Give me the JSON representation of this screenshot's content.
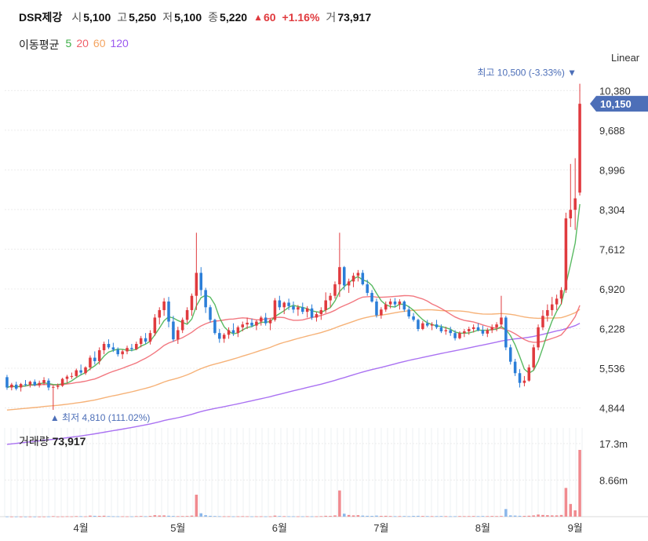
{
  "header": {
    "name": "DSR제강",
    "open_label": "시",
    "open": "5,100",
    "high_label": "고",
    "high": "5,250",
    "low_label": "저",
    "low": "5,100",
    "close_label": "종",
    "close": "5,220",
    "change_arrow": "▲",
    "change": "60",
    "change_pct": "+1.16%",
    "volume_label": "거",
    "volume": "73,917"
  },
  "moving_average": {
    "label": "이동평균",
    "items": [
      {
        "period": "5",
        "color": "#3cae46"
      },
      {
        "period": "20",
        "color": "#f0606a"
      },
      {
        "period": "60",
        "color": "#f4a460"
      },
      {
        "period": "120",
        "color": "#9b59f0"
      }
    ]
  },
  "scale_mode": "Linear",
  "volume_panel": {
    "title": "거래량",
    "value": "73,917"
  },
  "chart_data": [
    {
      "type": "candlestick",
      "x_labels": [
        "4월",
        "5월",
        "6월",
        "7월",
        "8월",
        "9월"
      ],
      "y_ticks": [
        4844,
        5536,
        6228,
        6920,
        7612,
        8304,
        8996,
        9688,
        10380
      ],
      "ylim": [
        4700,
        10700
      ],
      "current_price": "10,150",
      "current_value": 10150,
      "high_marker": {
        "label": "최고",
        "value": "10,500",
        "pct": "(-3.33%)",
        "arrow": "▼"
      },
      "low_marker": {
        "label": "최저",
        "value": "4,810",
        "pct": "(111.02%)",
        "arrow": "▲"
      },
      "up_color": "#e03a3e",
      "down_color": "#2b7ed8",
      "grid": true,
      "ohlc": [
        [
          5380,
          5420,
          5160,
          5200
        ],
        [
          5200,
          5280,
          5150,
          5250
        ],
        [
          5250,
          5300,
          5150,
          5180
        ],
        [
          5200,
          5280,
          5130,
          5260
        ],
        [
          5260,
          5330,
          5220,
          5250
        ],
        [
          5250,
          5320,
          5200,
          5300
        ],
        [
          5300,
          5340,
          5220,
          5240
        ],
        [
          5240,
          5320,
          5200,
          5280
        ],
        [
          5280,
          5380,
          5240,
          5330
        ],
        [
          5320,
          5360,
          5150,
          5200
        ],
        [
          5200,
          5240,
          4810,
          5210
        ],
        [
          5210,
          5270,
          5170,
          5230
        ],
        [
          5230,
          5370,
          5210,
          5350
        ],
        [
          5350,
          5420,
          5280,
          5390
        ],
        [
          5390,
          5460,
          5350,
          5400
        ],
        [
          5400,
          5530,
          5370,
          5500
        ],
        [
          5500,
          5600,
          5420,
          5460
        ],
        [
          5450,
          5570,
          5420,
          5550
        ],
        [
          5550,
          5760,
          5500,
          5720
        ],
        [
          5720,
          5830,
          5600,
          5660
        ],
        [
          5660,
          5900,
          5600,
          5850
        ],
        [
          5850,
          6000,
          5780,
          5960
        ],
        [
          5960,
          6040,
          5870,
          5900
        ],
        [
          5900,
          5980,
          5820,
          5860
        ],
        [
          5860,
          5900,
          5740,
          5780
        ],
        [
          5780,
          5860,
          5700,
          5830
        ],
        [
          5830,
          5930,
          5780,
          5890
        ],
        [
          5890,
          5960,
          5830,
          5870
        ],
        [
          5870,
          6000,
          5850,
          5960
        ],
        [
          5960,
          6100,
          5900,
          6060
        ],
        [
          6060,
          6150,
          5960,
          6000
        ],
        [
          6000,
          6200,
          5950,
          6150
        ],
        [
          6150,
          6480,
          6100,
          6420
        ],
        [
          6420,
          6600,
          6300,
          6550
        ],
        [
          6550,
          6760,
          6450,
          6700
        ],
        [
          6700,
          6780,
          6250,
          6350
        ],
        [
          6350,
          6450,
          6000,
          6040
        ],
        [
          6040,
          6260,
          5960,
          6200
        ],
        [
          6200,
          6420,
          6150,
          6380
        ],
        [
          6380,
          6600,
          6320,
          6550
        ],
        [
          6550,
          6840,
          6450,
          6800
        ],
        [
          6800,
          7900,
          6550,
          7200
        ],
        [
          7200,
          7300,
          6800,
          6900
        ],
        [
          6900,
          6940,
          6500,
          6600
        ],
        [
          6600,
          6640,
          6330,
          6380
        ],
        [
          6380,
          6400,
          6120,
          6150
        ],
        [
          6150,
          6220,
          5980,
          6050
        ],
        [
          6050,
          6150,
          5980,
          6120
        ],
        [
          6120,
          6250,
          6050,
          6200
        ],
        [
          6200,
          6320,
          6100,
          6150
        ],
        [
          6150,
          6280,
          6080,
          6250
        ],
        [
          6250,
          6350,
          6180,
          6300
        ],
        [
          6300,
          6420,
          6220,
          6330
        ],
        [
          6330,
          6400,
          6250,
          6280
        ],
        [
          6280,
          6380,
          6200,
          6350
        ],
        [
          6350,
          6450,
          6280,
          6420
        ],
        [
          6420,
          6500,
          6280,
          6320
        ],
        [
          6320,
          6400,
          6200,
          6380
        ],
        [
          6380,
          6760,
          6350,
          6720
        ],
        [
          6720,
          6800,
          6550,
          6600
        ],
        [
          6600,
          6700,
          6480,
          6680
        ],
        [
          6680,
          6750,
          6550,
          6620
        ],
        [
          6620,
          6700,
          6500,
          6560
        ],
        [
          6560,
          6640,
          6450,
          6600
        ],
        [
          6600,
          6680,
          6480,
          6520
        ],
        [
          6520,
          6620,
          6420,
          6580
        ],
        [
          6580,
          6650,
          6380,
          6420
        ],
        [
          6420,
          6520,
          6350,
          6480
        ],
        [
          6480,
          6600,
          6380,
          6550
        ],
        [
          6550,
          6860,
          6500,
          6720
        ],
        [
          6720,
          6850,
          6600,
          6800
        ],
        [
          6800,
          7050,
          6750,
          7000
        ],
        [
          7000,
          7900,
          6780,
          7300
        ],
        [
          7300,
          7320,
          6900,
          6980
        ],
        [
          6980,
          7100,
          6850,
          7050
        ],
        [
          7050,
          7200,
          6950,
          7150
        ],
        [
          7150,
          7250,
          7050,
          7200
        ],
        [
          7200,
          7250,
          6980,
          7000
        ],
        [
          7000,
          7080,
          6800,
          6850
        ],
        [
          6850,
          6900,
          6680,
          6700
        ],
        [
          6700,
          6750,
          6420,
          6460
        ],
        [
          6460,
          6600,
          6400,
          6560
        ],
        [
          6560,
          6700,
          6520,
          6650
        ],
        [
          6650,
          6750,
          6580,
          6700
        ],
        [
          6700,
          6760,
          6600,
          6650
        ],
        [
          6650,
          6740,
          6560,
          6700
        ],
        [
          6700,
          6720,
          6520,
          6560
        ],
        [
          6560,
          6620,
          6400,
          6440
        ],
        [
          6440,
          6500,
          6350,
          6380
        ],
        [
          6380,
          6400,
          6180,
          6220
        ],
        [
          6220,
          6360,
          6200,
          6320
        ],
        [
          6320,
          6380,
          6250,
          6280
        ],
        [
          6280,
          6340,
          6200,
          6300
        ],
        [
          6300,
          6380,
          6220,
          6250
        ],
        [
          6250,
          6300,
          6150,
          6180
        ],
        [
          6180,
          6260,
          6120,
          6200
        ],
        [
          6200,
          6260,
          6100,
          6150
        ],
        [
          6150,
          6200,
          6020,
          6060
        ],
        [
          6060,
          6180,
          6040,
          6150
        ],
        [
          6150,
          6220,
          6080,
          6180
        ],
        [
          6180,
          6260,
          6120,
          6220
        ],
        [
          6220,
          6300,
          6160,
          6250
        ],
        [
          6250,
          6320,
          6180,
          6200
        ],
        [
          6200,
          6280,
          6100,
          6140
        ],
        [
          6140,
          6240,
          6080,
          6200
        ],
        [
          6200,
          6300,
          6150,
          6250
        ],
        [
          6250,
          6340,
          6180,
          6300
        ],
        [
          6300,
          6800,
          6250,
          6420
        ],
        [
          6420,
          6450,
          5850,
          5900
        ],
        [
          5900,
          5950,
          5600,
          5650
        ],
        [
          5650,
          5700,
          5400,
          5450
        ],
        [
          5450,
          5520,
          5200,
          5280
        ],
        [
          5280,
          5400,
          5220,
          5320
        ],
        [
          5320,
          5600,
          5300,
          5550
        ],
        [
          5550,
          5950,
          5500,
          5900
        ],
        [
          5900,
          6300,
          5850,
          6250
        ],
        [
          6250,
          6550,
          6200,
          6450
        ],
        [
          6450,
          6650,
          6350,
          6550
        ],
        [
          6550,
          6780,
          6450,
          6650
        ],
        [
          6650,
          6820,
          6550,
          6750
        ],
        [
          6750,
          6950,
          6650,
          6900
        ],
        [
          6900,
          8250,
          6850,
          8150
        ],
        [
          8150,
          9100,
          8000,
          8300
        ],
        [
          8300,
          9200,
          7950,
          8500
        ],
        [
          8600,
          10500,
          8550,
          10150
        ]
      ],
      "volume_ticks": [
        "8.66m",
        "17.3m"
      ],
      "volume_ylim": [
        0,
        21000000
      ],
      "volume": [
        40000,
        30000,
        35000,
        30000,
        25000,
        30000,
        28000,
        30000,
        35000,
        45000,
        120000,
        40000,
        60000,
        90000,
        70000,
        130000,
        110000,
        80000,
        250000,
        200000,
        180000,
        220000,
        140000,
        100000,
        80000,
        90000,
        80000,
        70000,
        120000,
        150000,
        110000,
        180000,
        350000,
        280000,
        300000,
        220000,
        160000,
        120000,
        140000,
        160000,
        250000,
        5200000,
        800000,
        350000,
        200000,
        150000,
        110000,
        90000,
        100000,
        80000,
        90000,
        110000,
        100000,
        70000,
        80000,
        90000,
        70000,
        80000,
        250000,
        150000,
        120000,
        100000,
        90000,
        80000,
        90000,
        100000,
        80000,
        90000,
        120000,
        200000,
        180000,
        300000,
        6200000,
        700000,
        400000,
        300000,
        350000,
        250000,
        200000,
        180000,
        250000,
        180000,
        200000,
        150000,
        120000,
        130000,
        150000,
        120000,
        180000,
        200000,
        160000,
        140000,
        120000,
        130000,
        150000,
        120000,
        100000,
        110000,
        140000,
        120000,
        130000,
        150000,
        130000,
        150000,
        130000,
        160000,
        140000,
        160000,
        1800000,
        300000,
        250000,
        200000,
        180000,
        220000,
        300000,
        500000,
        400000,
        350000,
        300000,
        300000,
        400000,
        6800000,
        3000000,
        1500000,
        15800000
      ],
      "volume_colors_up": "#f08a8f",
      "volume_colors_down": "#8bb7ea"
    }
  ]
}
